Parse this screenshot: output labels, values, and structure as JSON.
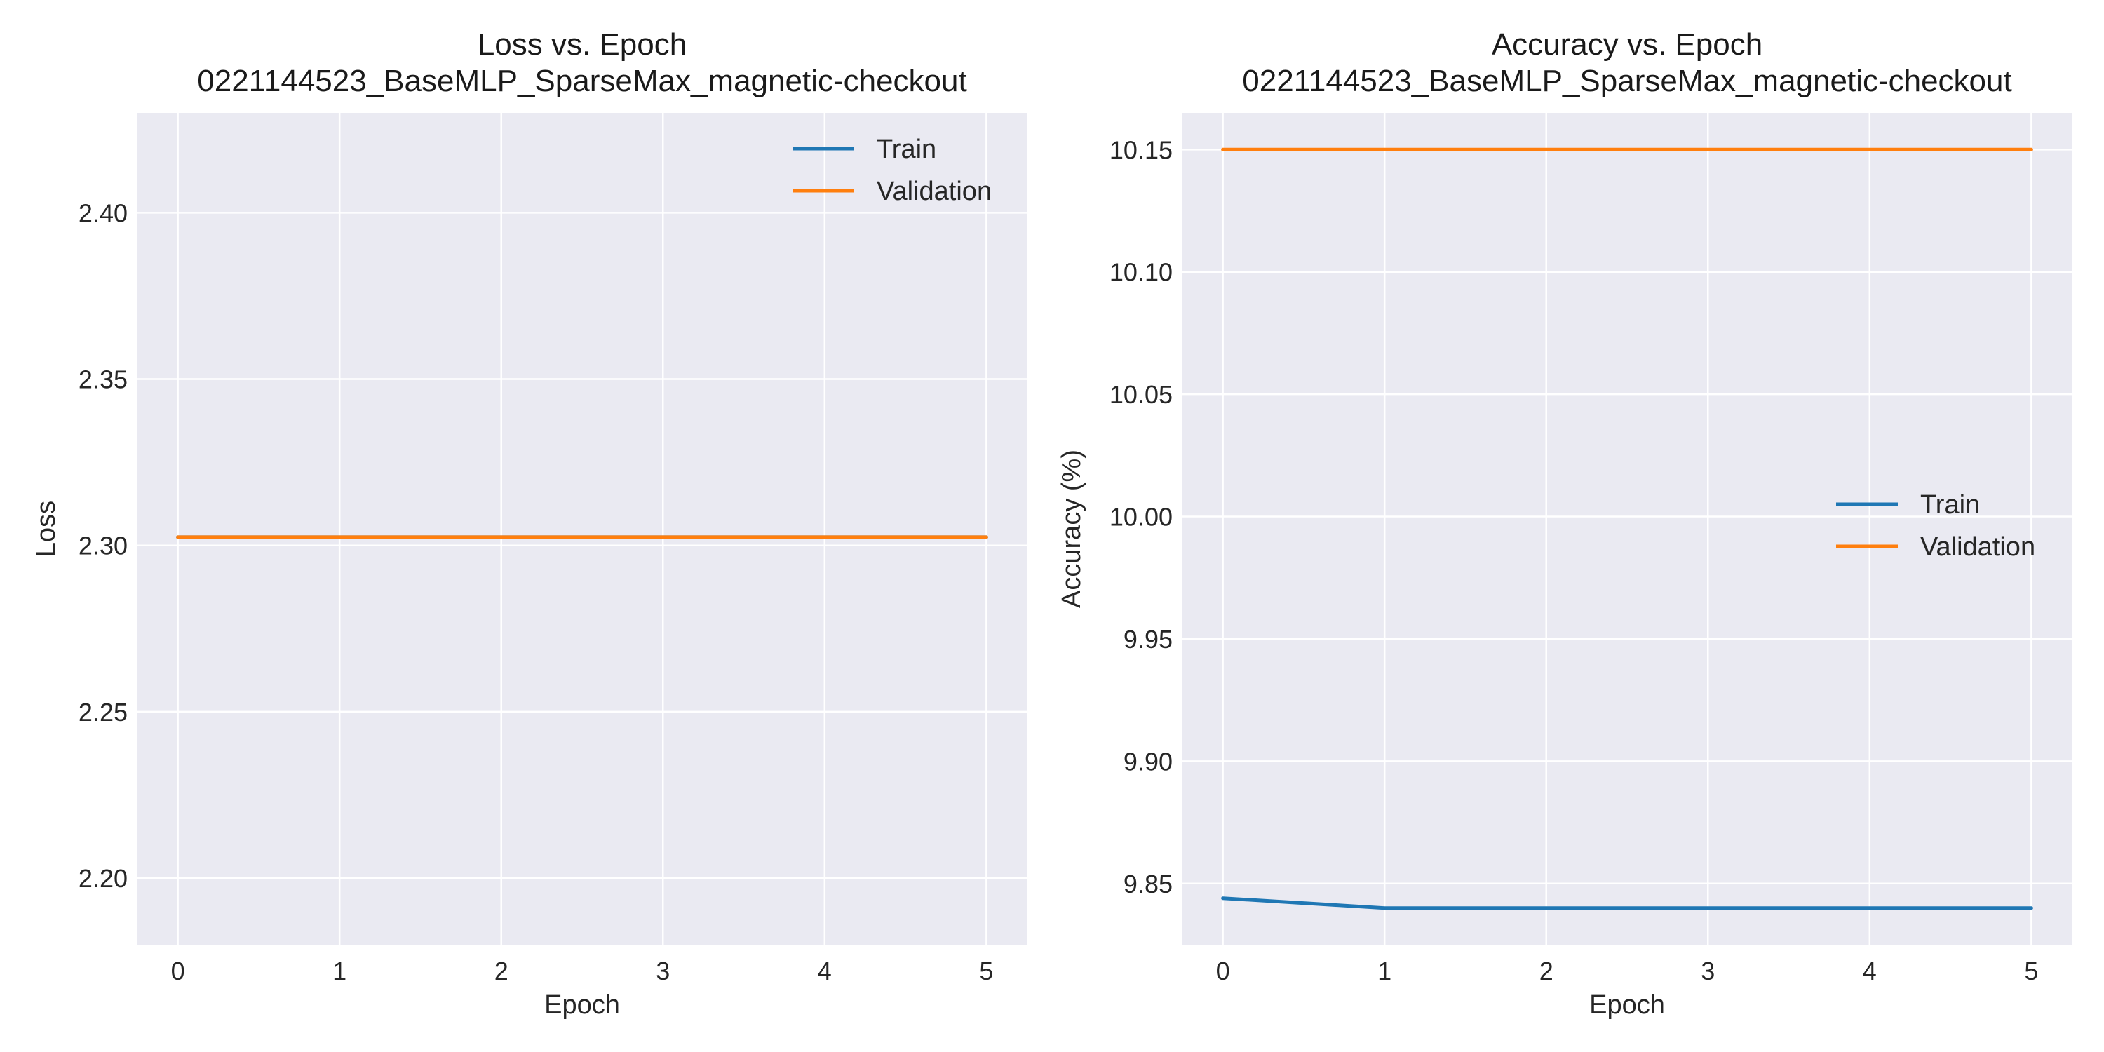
{
  "chart_data": [
    {
      "type": "line",
      "title_line1": "Loss vs. Epoch",
      "title_line2": "0221144523_BaseMLP_SparseMax_magnetic-checkout",
      "xlabel": "Epoch",
      "ylabel": "Loss",
      "x": [
        0,
        1,
        2,
        3,
        4,
        5
      ],
      "xticks": [
        "0",
        "1",
        "2",
        "3",
        "4",
        "5"
      ],
      "yticks": [
        "2.20",
        "2.25",
        "2.30",
        "2.35",
        "2.40"
      ],
      "ylim": [
        2.18,
        2.43
      ],
      "grid": true,
      "legend_position": "upper right",
      "series": [
        {
          "name": "Train",
          "color": "#1f77b4",
          "values": [
            2.3025,
            2.3025,
            2.3025,
            2.3025,
            2.3025,
            2.3025
          ]
        },
        {
          "name": "Validation",
          "color": "#ff7f0e",
          "values": [
            2.3025,
            2.3025,
            2.3025,
            2.3025,
            2.3025,
            2.3025
          ]
        }
      ]
    },
    {
      "type": "line",
      "title_line1": "Accuracy vs. Epoch",
      "title_line2": "0221144523_BaseMLP_SparseMax_magnetic-checkout",
      "xlabel": "Epoch",
      "ylabel": "Accuracy (%)",
      "x": [
        0,
        1,
        2,
        3,
        4,
        5
      ],
      "xticks": [
        "0",
        "1",
        "2",
        "3",
        "4",
        "5"
      ],
      "yticks": [
        "9.85",
        "9.90",
        "9.95",
        "10.00",
        "10.05",
        "10.10",
        "10.15"
      ],
      "ylim": [
        9.825,
        10.165
      ],
      "grid": true,
      "legend_position": "center right",
      "series": [
        {
          "name": "Train",
          "color": "#1f77b4",
          "values": [
            9.844,
            9.84,
            9.84,
            9.84,
            9.84,
            9.84
          ]
        },
        {
          "name": "Validation",
          "color": "#ff7f0e",
          "values": [
            10.15,
            10.15,
            10.15,
            10.15,
            10.15,
            10.15
          ]
        }
      ]
    }
  ]
}
